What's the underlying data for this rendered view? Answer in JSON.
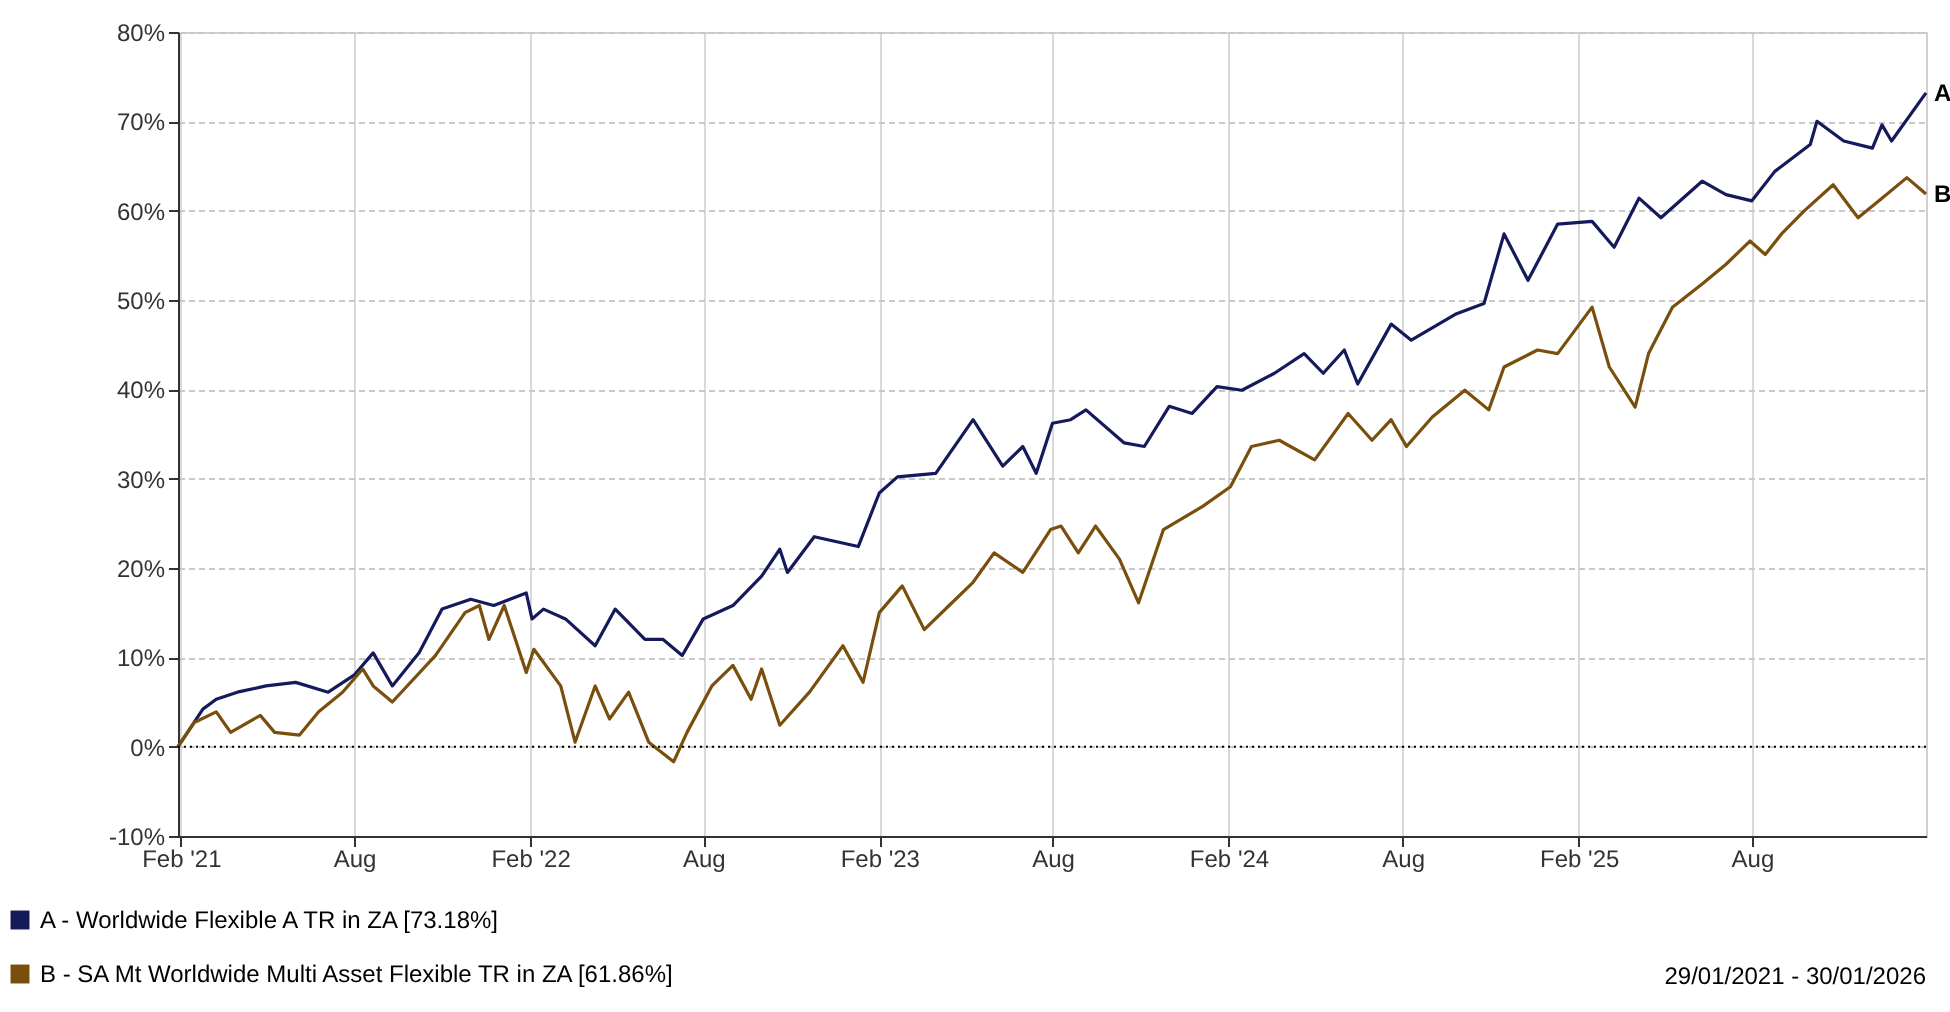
{
  "chart_data": {
    "type": "line",
    "xlim": [
      "2021-01-29",
      "2026-01-30"
    ],
    "xticks": [
      {
        "value": "2021-02-01",
        "label": "Feb '21"
      },
      {
        "value": "2021-08-01",
        "label": "Aug"
      },
      {
        "value": "2022-02-01",
        "label": "Feb '22"
      },
      {
        "value": "2022-08-01",
        "label": "Aug"
      },
      {
        "value": "2023-02-01",
        "label": "Feb '23"
      },
      {
        "value": "2023-08-01",
        "label": "Aug"
      },
      {
        "value": "2024-02-01",
        "label": "Feb '24"
      },
      {
        "value": "2024-08-01",
        "label": "Aug"
      },
      {
        "value": "2025-02-01",
        "label": "Feb '25"
      },
      {
        "value": "2025-08-01",
        "label": "Aug"
      }
    ],
    "ylim": [
      -10,
      80
    ],
    "yticks": [
      {
        "value": -10,
        "label": "-10%"
      },
      {
        "value": 0,
        "label": "0%"
      },
      {
        "value": 10,
        "label": "10%"
      },
      {
        "value": 20,
        "label": "20%"
      },
      {
        "value": 30,
        "label": "30%"
      },
      {
        "value": 40,
        "label": "40%"
      },
      {
        "value": 50,
        "label": "50%"
      },
      {
        "value": 60,
        "label": "60%"
      },
      {
        "value": 70,
        "label": "70%"
      },
      {
        "value": 80,
        "label": "80%"
      }
    ],
    "grid": true,
    "legend": "bottom",
    "line_style": "solid",
    "ref_lines": [
      {
        "axis": "y",
        "value": 0,
        "color": "#000000",
        "line_style": "dotted"
      }
    ],
    "series": [
      {
        "name": "A - Worldwide Flexible A TR in ZA [73.18%]",
        "color": "#141a5a",
        "x": [
          "2021-01-29",
          "2021-02-24",
          "2021-03-10",
          "2021-04-01",
          "2021-05-01",
          "2021-06-01",
          "2021-07-05",
          "2021-08-01",
          "2021-08-21",
          "2021-09-10",
          "2021-10-08",
          "2021-11-01",
          "2021-12-01",
          "2021-12-25",
          "2022-01-28",
          "2022-02-03",
          "2022-02-15",
          "2022-03-10",
          "2022-04-10",
          "2022-05-01",
          "2022-06-01",
          "2022-06-20",
          "2022-07-10",
          "2022-08-01",
          "2022-09-01",
          "2022-10-01",
          "2022-10-20",
          "2022-10-28",
          "2022-11-25",
          "2023-01-10",
          "2023-02-01",
          "2023-02-20",
          "2023-04-01",
          "2023-05-10",
          "2023-06-10",
          "2023-07-01",
          "2023-07-15",
          "2023-08-01",
          "2023-08-20",
          "2023-09-05",
          "2023-10-15",
          "2023-11-05",
          "2023-12-01",
          "2023-12-25",
          "2024-01-20",
          "2024-02-15",
          "2024-03-20",
          "2024-04-20",
          "2024-05-10",
          "2024-06-01",
          "2024-06-15",
          "2024-07-20",
          "2024-08-10",
          "2024-09-25",
          "2024-10-25",
          "2024-11-15",
          "2024-12-10",
          "2025-01-10",
          "2025-02-15",
          "2025-03-10",
          "2025-04-05",
          "2025-04-28",
          "2025-06-10",
          "2025-07-05",
          "2025-08-01",
          "2025-08-25",
          "2025-10-01",
          "2025-10-08",
          "2025-11-05",
          "2025-12-05",
          "2025-12-15",
          "2025-12-25",
          "2026-01-30"
        ],
        "values": [
          0,
          4.2,
          5.3,
          6.1,
          6.8,
          7.2,
          6.1,
          8.0,
          10.5,
          6.8,
          10.5,
          15.4,
          16.5,
          15.8,
          17.2,
          14.3,
          15.4,
          14.3,
          11.3,
          15.4,
          12.0,
          12.0,
          10.2,
          14.3,
          15.8,
          19.1,
          22.1,
          19.5,
          23.5,
          22.4,
          28.4,
          30.2,
          30.6,
          36.6,
          31.4,
          33.6,
          30.6,
          36.2,
          36.6,
          37.7,
          34.0,
          33.6,
          38.1,
          37.3,
          40.3,
          39.9,
          41.8,
          44.0,
          41.8,
          44.4,
          40.6,
          47.3,
          45.5,
          48.4,
          49.6,
          57.4,
          52.2,
          58.5,
          58.8,
          55.9,
          61.4,
          59.2,
          63.3,
          61.8,
          61.1,
          64.4,
          67.4,
          70.0,
          67.8,
          67.0,
          69.6,
          67.8,
          73.18
        ]
      },
      {
        "name": "B - SA Mt Worldwide Multi Asset Flexible TR in ZA [61.86%]",
        "color": "#7a4f0e",
        "x": [
          "2021-01-29",
          "2021-02-15",
          "2021-03-10",
          "2021-03-25",
          "2021-04-25",
          "2021-05-10",
          "2021-06-05",
          "2021-06-25",
          "2021-07-20",
          "2021-08-10",
          "2021-08-21",
          "2021-09-10",
          "2021-10-25",
          "2021-11-25",
          "2021-12-10",
          "2021-12-20",
          "2022-01-05",
          "2022-01-28",
          "2022-02-05",
          "2022-03-05",
          "2022-03-20",
          "2022-04-10",
          "2022-04-25",
          "2022-05-15",
          "2022-06-05",
          "2022-07-01",
          "2022-07-15",
          "2022-08-10",
          "2022-09-01",
          "2022-09-20",
          "2022-10-01",
          "2022-10-20",
          "2022-11-20",
          "2022-12-25",
          "2023-01-15",
          "2023-02-01",
          "2023-02-25",
          "2023-03-20",
          "2023-04-15",
          "2023-05-10",
          "2023-06-01",
          "2023-07-01",
          "2023-07-30",
          "2023-08-10",
          "2023-08-28",
          "2023-09-15",
          "2023-10-10",
          "2023-10-30",
          "2023-11-25",
          "2024-01-05",
          "2024-02-03",
          "2024-02-25",
          "2024-03-25",
          "2024-05-01",
          "2024-06-05",
          "2024-06-30",
          "2024-07-20",
          "2024-08-05",
          "2024-09-01",
          "2024-10-05",
          "2024-10-30",
          "2024-11-15",
          "2024-12-20",
          "2025-01-10",
          "2025-02-15",
          "2025-03-05",
          "2025-04-01",
          "2025-04-15",
          "2025-05-10",
          "2025-06-10",
          "2025-07-05",
          "2025-07-30",
          "2025-08-15",
          "2025-09-01",
          "2025-09-25",
          "2025-10-25",
          "2025-11-20",
          "2025-12-15",
          "2026-01-10",
          "2026-01-30"
        ],
        "values": [
          0,
          2.7,
          3.9,
          1.6,
          3.5,
          1.6,
          1.3,
          3.9,
          6.1,
          8.7,
          6.8,
          5.0,
          10.2,
          15.0,
          15.8,
          12.0,
          15.8,
          8.3,
          10.9,
          6.8,
          0.5,
          6.8,
          3.1,
          6.1,
          0.5,
          -1.7,
          1.6,
          6.8,
          9.1,
          5.3,
          8.7,
          2.4,
          6.1,
          11.3,
          7.2,
          15.0,
          18.0,
          13.1,
          15.8,
          18.4,
          21.7,
          19.5,
          24.3,
          24.7,
          21.7,
          24.7,
          21.0,
          16.1,
          24.3,
          26.9,
          29.1,
          33.6,
          34.3,
          32.1,
          37.3,
          34.3,
          36.6,
          33.6,
          36.9,
          39.9,
          37.7,
          42.5,
          44.4,
          44.0,
          49.2,
          42.5,
          38.0,
          44.0,
          49.2,
          51.8,
          54.0,
          56.6,
          55.1,
          57.4,
          60.0,
          62.9,
          59.2,
          61.4,
          63.7,
          61.86
        ]
      }
    ],
    "annotations": [
      {
        "text": "A",
        "x": "2026-01-30",
        "y": 73.18
      },
      {
        "text": "B",
        "x": "2026-01-30",
        "y": 61.86
      },
      "29/01/2021 - 30/01/2026"
    ]
  }
}
